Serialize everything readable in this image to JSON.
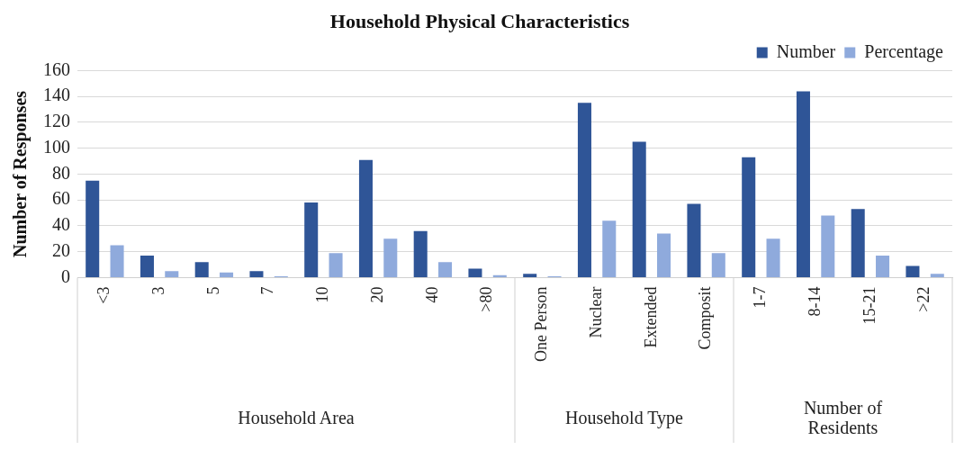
{
  "chart_data": {
    "type": "bar",
    "title": "Household Physical Characteristics",
    "ylabel": "Number of Responses",
    "categories": [
      "<3",
      "3",
      "5",
      "7",
      "10",
      "20",
      "40",
      ">80",
      "One Person",
      "Nuclear",
      "Extended",
      "Composit",
      "1-7",
      "8-14",
      "15-21",
      ">22"
    ],
    "series": [
      {
        "name": "Number",
        "color": "#2f5597",
        "values": [
          75,
          17,
          12,
          5,
          58,
          91,
          36,
          7,
          3,
          135,
          105,
          57,
          93,
          144,
          53,
          9
        ]
      },
      {
        "name": "Percentage",
        "color": "#8faadc",
        "values": [
          25,
          5,
          4,
          1,
          19,
          30,
          12,
          2,
          1,
          44,
          34,
          19,
          30,
          48,
          17,
          3
        ]
      }
    ],
    "annotations": [
      "Household Area",
      "Household Type",
      "Number of Residents"
    ],
    "ylim": [
      0,
      160
    ],
    "yticks": [
      0,
      20,
      40,
      60,
      80,
      100,
      120,
      140,
      160
    ],
    "grid": "y",
    "legend": "top right"
  }
}
